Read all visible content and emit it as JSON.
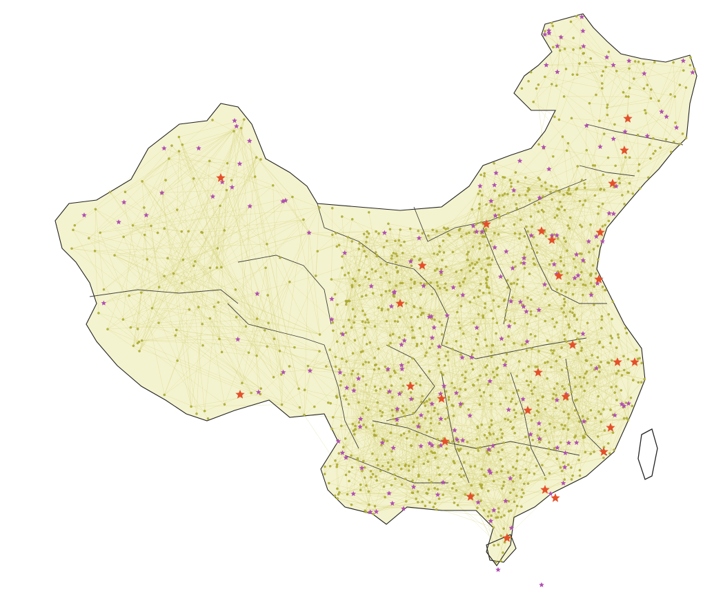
{
  "map": {
    "colors": {
      "background": "#ffffff",
      "border": "#222222",
      "edge": "#d6d27a",
      "fill": "#f4f3cf",
      "node": "#b7b43a",
      "node_outline": "#9a9830",
      "provincial_node": "#b14fb2",
      "capital_node": "#e3502a"
    },
    "node_shapes": {
      "ordinary": "dot",
      "provincial": "star",
      "capital": "star"
    },
    "legend": null
  }
}
